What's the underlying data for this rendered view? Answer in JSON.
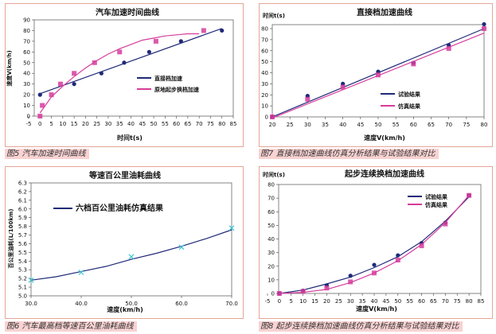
{
  "colors": {
    "panel_border": "#e6a596",
    "caption_bg": "#f9d2d2",
    "navy": "#1f2a78",
    "magenta": "#d63c9c",
    "cyan": "#3cc8d8"
  },
  "captions": {
    "fig5": "图5  汽车加速时间曲线",
    "fig7": "图7  直接档加速曲线仿真分析结果与试验结果对比",
    "fig6": "图6  汽车最高档等速百公里油耗曲线",
    "fig8": "图8  起步连续换档加速曲线仿真分析结果与试验结果对比"
  },
  "chart_data": [
    {
      "id": "fig5",
      "type": "line",
      "title": "汽车加速时间曲线",
      "xlabel": "时间t(s)",
      "ylabel": "速度V(km/h)",
      "xlim": [
        -5,
        85
      ],
      "ylim": [
        0,
        90
      ],
      "xticks": [
        -5,
        0,
        5,
        10,
        15,
        20,
        25,
        30,
        35,
        40,
        45,
        50,
        55,
        60,
        65,
        70,
        75,
        80,
        85
      ],
      "yticks": [
        0,
        10,
        20,
        30,
        40,
        50,
        60,
        70,
        80,
        90
      ],
      "series": [
        {
          "name": "直接档加速",
          "color": "#1f2a78",
          "marker": "circle",
          "points": [
            [
              0,
              20
            ],
            [
              15,
              30
            ],
            [
              27,
              40
            ],
            [
              37,
              50
            ],
            [
              48,
              60
            ],
            [
              62,
              70
            ],
            [
              80,
              80
            ]
          ],
          "line": [
            [
              0,
              21
            ],
            [
              80,
              82
            ]
          ]
        },
        {
          "name": "原地起步换档加速",
          "color": "#d63c9c",
          "marker": "square",
          "points": [
            [
              0,
              0
            ],
            [
              1,
              10
            ],
            [
              5,
              20
            ],
            [
              9,
              30
            ],
            [
              15,
              40
            ],
            [
              24,
              50
            ],
            [
              35,
              60
            ],
            [
              51,
              70
            ],
            [
              72,
              80
            ]
          ],
          "line": [
            [
              0,
              3
            ],
            [
              5,
              18
            ],
            [
              10,
              28
            ],
            [
              15,
              37
            ],
            [
              20,
              45
            ],
            [
              25,
              52
            ],
            [
              30,
              58
            ],
            [
              35,
              63
            ],
            [
              40,
              67
            ],
            [
              45,
              71
            ],
            [
              50,
              73
            ],
            [
              55,
              75
            ],
            [
              60,
              76
            ],
            [
              65,
              77
            ],
            [
              70,
              77
            ]
          ]
        }
      ]
    },
    {
      "id": "fig7",
      "type": "line",
      "title": "直接档加速曲线",
      "xlabel": "速度V(km/h)",
      "ylabel": "时间t(s)",
      "xlim": [
        20,
        80
      ],
      "ylim": [
        0,
        80
      ],
      "xticks": [
        20,
        25,
        30,
        35,
        40,
        45,
        50,
        55,
        60,
        65,
        70,
        75,
        80
      ],
      "yticks": [
        0,
        10,
        20,
        30,
        40,
        50,
        60,
        70,
        80
      ],
      "series": [
        {
          "name": "试验结果",
          "color": "#1f2a78",
          "marker": "circle",
          "points": [
            [
              20,
              0
            ],
            [
              30,
              19
            ],
            [
              40,
              30
            ],
            [
              50,
              41
            ],
            [
              60,
              49
            ],
            [
              70,
              65
            ],
            [
              80,
              84
            ]
          ],
          "line": [
            [
              20,
              0
            ],
            [
              80,
              80
            ]
          ]
        },
        {
          "name": "仿真结果",
          "color": "#d63c9c",
          "marker": "square",
          "points": [
            [
              20,
              0
            ],
            [
              30,
              16
            ],
            [
              40,
              27
            ],
            [
              50,
              38
            ],
            [
              60,
              48
            ],
            [
              70,
              62
            ],
            [
              80,
              80
            ]
          ],
          "line": [
            [
              20,
              -1
            ],
            [
              80,
              76
            ]
          ]
        }
      ]
    },
    {
      "id": "fig6",
      "type": "line",
      "title": "等速百公里油耗曲线",
      "xlabel": "速度(km/h)",
      "ylabel": "百公里油耗(L/100km)",
      "xlim": [
        30,
        70
      ],
      "ylim": [
        5.0,
        6.3
      ],
      "xticks": [
        30,
        40,
        50,
        60,
        70
      ],
      "yticks": [
        5.0,
        5.1,
        5.2,
        5.3,
        5.4,
        5.5,
        5.6,
        5.7,
        5.8,
        5.9,
        6.0,
        6.1,
        6.2,
        6.3
      ],
      "series": [
        {
          "name": "六档百公里油耗仿真结果",
          "color": "#1f2a78",
          "marker": "cross",
          "points": [
            [
              30,
              5.18
            ],
            [
              40,
              5.27
            ],
            [
              50,
              5.45
            ],
            [
              60,
              5.56
            ],
            [
              70,
              5.78
            ]
          ],
          "line": [
            [
              30,
              5.18
            ],
            [
              35,
              5.22
            ],
            [
              40,
              5.28
            ],
            [
              45,
              5.34
            ],
            [
              50,
              5.42
            ],
            [
              55,
              5.49
            ],
            [
              60,
              5.57
            ],
            [
              65,
              5.66
            ],
            [
              70,
              5.76
            ]
          ]
        }
      ]
    },
    {
      "id": "fig8",
      "type": "line",
      "title": "起步连续换档加速曲线",
      "xlabel": "速度V(km/h)",
      "ylabel": "时间t(s)",
      "xlim": [
        -5,
        85
      ],
      "ylim": [
        0,
        80
      ],
      "xticks": [
        -5,
        0,
        5,
        10,
        15,
        20,
        25,
        30,
        35,
        40,
        45,
        50,
        55,
        60,
        65,
        70,
        75,
        80,
        85
      ],
      "yticks": [
        0,
        10,
        20,
        30,
        40,
        50,
        60,
        70,
        80
      ],
      "series": [
        {
          "name": "试验结果",
          "color": "#1f2a78",
          "marker": "circle",
          "points": [
            [
              0,
              0
            ],
            [
              10,
              2
            ],
            [
              20,
              6
            ],
            [
              30,
              13
            ],
            [
              40,
              21
            ],
            [
              50,
              28
            ],
            [
              60,
              37
            ],
            [
              70,
              52
            ],
            [
              80,
              72
            ]
          ],
          "line": [
            [
              0,
              0
            ],
            [
              10,
              2.5
            ],
            [
              20,
              7
            ],
            [
              30,
              12
            ],
            [
              40,
              19
            ],
            [
              50,
              27
            ],
            [
              60,
              38
            ],
            [
              70,
              53
            ],
            [
              80,
              71
            ]
          ]
        },
        {
          "name": "仿真结果",
          "color": "#d63c9c",
          "marker": "square",
          "points": [
            [
              0,
              0
            ],
            [
              10,
              1.5
            ],
            [
              20,
              4
            ],
            [
              30,
              8.5
            ],
            [
              40,
              15
            ],
            [
              50,
              24.5
            ],
            [
              60,
              35
            ],
            [
              70,
              51
            ],
            [
              80,
              72
            ]
          ],
          "line": [
            [
              0,
              0
            ],
            [
              10,
              0.8
            ],
            [
              20,
              3
            ],
            [
              30,
              8
            ],
            [
              40,
              15
            ],
            [
              50,
              24
            ],
            [
              60,
              36
            ],
            [
              70,
              52
            ],
            [
              80,
              72
            ]
          ]
        }
      ]
    }
  ]
}
